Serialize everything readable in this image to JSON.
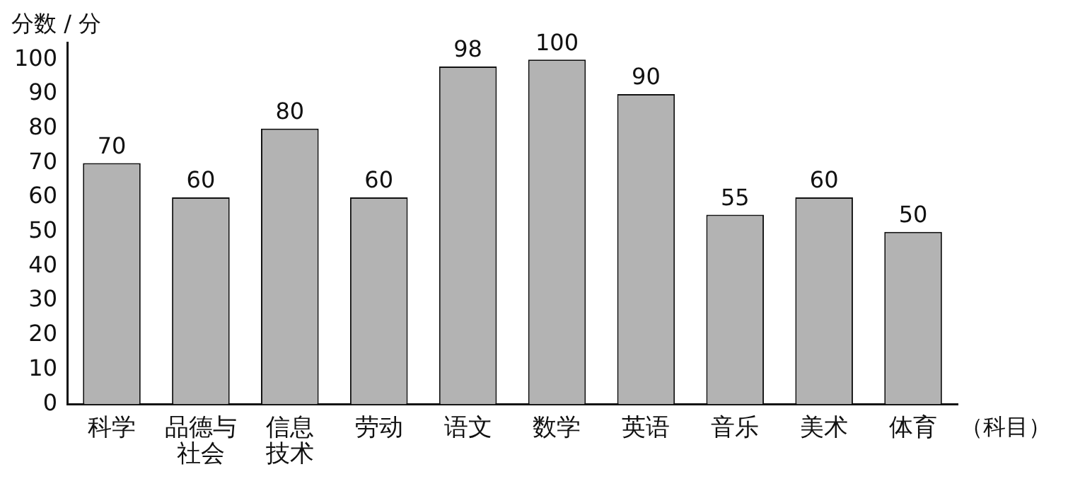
{
  "chart_data": {
    "type": "bar",
    "ylabel": "分数 / 分",
    "xlabel": "（科目）",
    "categories": [
      "科学",
      "品德与社会",
      "信息技术",
      "劳动",
      "语文",
      "数学",
      "英语",
      "音乐",
      "美术",
      "体育"
    ],
    "values": [
      70,
      60,
      80,
      60,
      98,
      100,
      90,
      55,
      60,
      50
    ],
    "color": "#b3b3b3",
    "ylim": [
      0,
      105
    ],
    "yticks": [
      0,
      10,
      20,
      30,
      40,
      50,
      60,
      70,
      80,
      90,
      100
    ],
    "grid": false,
    "legend": false,
    "data_labels": true
  }
}
